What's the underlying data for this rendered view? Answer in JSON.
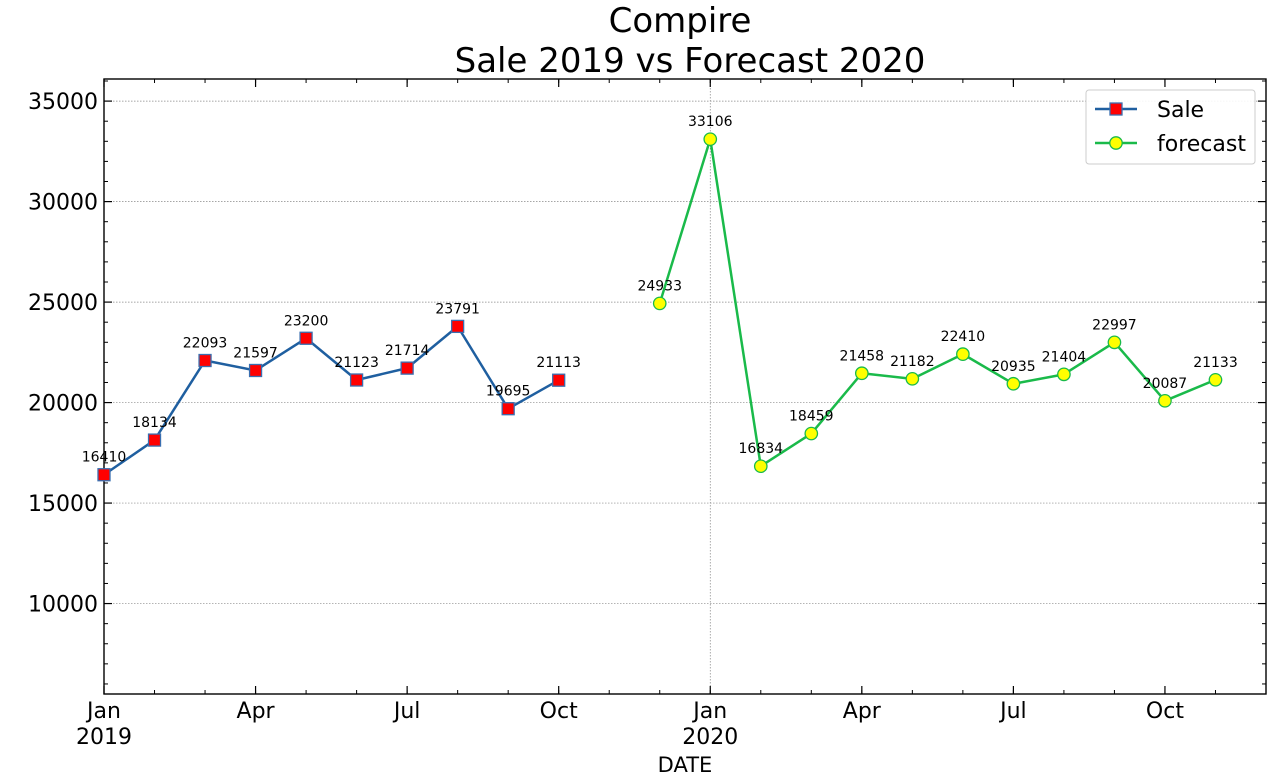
{
  "chart_data": {
    "type": "line",
    "title_line1": "Compire",
    "title_line2": "Sale 2019 vs Forecast 2020",
    "xlabel": "DATE",
    "ylabel": "",
    "xlim": [
      "2019-01",
      "2020-12"
    ],
    "ylim": [
      5500,
      36100
    ],
    "yticks": [
      10000,
      15000,
      20000,
      25000,
      30000,
      35000
    ],
    "xticks": [
      {
        "date": "2019-01",
        "label": "Jan",
        "sublabel": "2019"
      },
      {
        "date": "2019-04",
        "label": "Apr",
        "sublabel": ""
      },
      {
        "date": "2019-07",
        "label": "Jul",
        "sublabel": ""
      },
      {
        "date": "2019-10",
        "label": "Oct",
        "sublabel": ""
      },
      {
        "date": "2020-01",
        "label": "Jan",
        "sublabel": "2020"
      },
      {
        "date": "2020-04",
        "label": "Apr",
        "sublabel": ""
      },
      {
        "date": "2020-07",
        "label": "Jul",
        "sublabel": ""
      },
      {
        "date": "2020-10",
        "label": "Oct",
        "sublabel": ""
      }
    ],
    "grid": true,
    "legend_position": "top-right",
    "series": [
      {
        "name": "Sale",
        "line_color": "#1f5fa0",
        "marker": "square",
        "marker_fill": "#ff0000",
        "marker_edge": "#3a6fb0",
        "x": [
          "2019-01",
          "2019-02",
          "2019-03",
          "2019-04",
          "2019-05",
          "2019-06",
          "2019-07",
          "2019-08",
          "2019-09",
          "2019-10"
        ],
        "values": [
          16410,
          18134,
          22093,
          21597,
          23200,
          21123,
          21714,
          23791,
          19695,
          21113
        ],
        "labels": [
          "16410",
          "18134",
          "22093",
          "21597",
          "23200",
          "21123",
          "21714",
          "23791",
          "19695",
          "21113"
        ]
      },
      {
        "name": "forecast",
        "line_color": "#1aba4a",
        "marker": "circle",
        "marker_fill": "#ffff00",
        "marker_edge": "#1aba4a",
        "x": [
          "2019-12",
          "2020-01",
          "2020-02",
          "2020-03",
          "2020-04",
          "2020-05",
          "2020-06",
          "2020-07",
          "2020-08",
          "2020-09",
          "2020-10",
          "2020-11"
        ],
        "values": [
          24933,
          33106,
          16834,
          18459,
          21458,
          21182,
          22410,
          20935,
          21404,
          22997,
          20087,
          21133
        ],
        "labels": [
          "24933",
          "33106",
          "16834",
          "18459",
          "21458",
          "21182",
          "22410",
          "20935",
          "21404",
          "22997",
          "20087",
          "21133"
        ]
      }
    ]
  }
}
